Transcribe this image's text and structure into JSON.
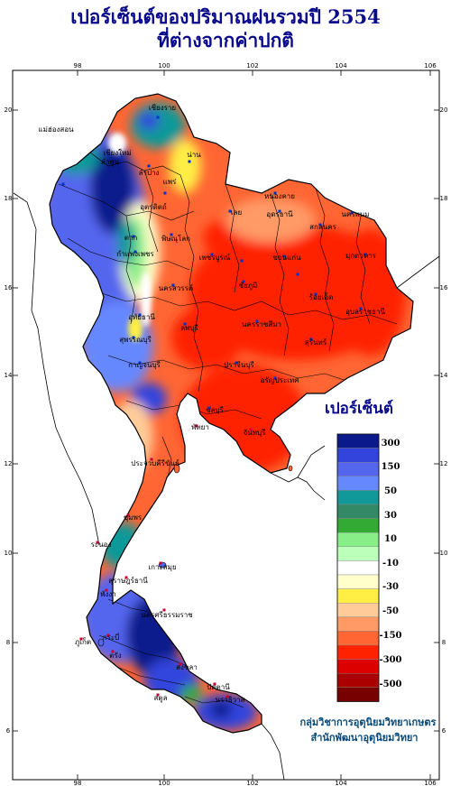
{
  "title": {
    "line1": "เปอร์เซ็นต์ของปริมาณฝนรวมปี  2554",
    "line2": "ที่ต่างจากค่าปกติ"
  },
  "axes": {
    "lon_ticks": [
      "98",
      "100",
      "102",
      "104",
      "106"
    ],
    "lat_ticks": [
      "20",
      "18",
      "16",
      "14",
      "12",
      "10",
      "8",
      "6"
    ]
  },
  "legend": {
    "title": "เปอร์เซ็นต์",
    "colors": [
      "#0a1a8c",
      "#3344dd",
      "#5566ee",
      "#6688ff",
      "#119999",
      "#338866",
      "#33aa33",
      "#88ee88",
      "#bbffbb",
      "#ffffff",
      "#ffffcc",
      "#ffee44",
      "#ffcc99",
      "#ff9966",
      "#ff6633",
      "#ff2200",
      "#dd0000",
      "#aa0000",
      "#770000"
    ],
    "labels": [
      "300",
      "150",
      "50",
      "30",
      "10",
      "-10",
      "-30",
      "-50",
      "-150",
      "-300",
      "-500"
    ]
  },
  "provinces": [
    "เชียงราย",
    "แม่ฮ่องสอน",
    "เชียงใหม่",
    "ลำพูน",
    "ลำปาง",
    "น่าน",
    "แพร่",
    "อุตรดิตถ์",
    "หนองคาย",
    "นครพนม",
    "เลย",
    "อุดรธานี",
    "สกลนคร",
    "มุกดาหาร",
    "ตาก",
    "พิษณุโลก",
    "เพชรบูรณ์",
    "ขอนแก่น",
    "กำแพงเพชร",
    "นครสวรรค์",
    "ชัยภูมิ",
    "ร้อยเอ็ด",
    "อุบลราชธานี",
    "อุทัยธานี",
    "ลพบุรี",
    "นครราชสีมา",
    "สุรินทร์",
    "สุพรรณบุรี",
    "กาญจนบุรี",
    "ปราจีนบุรี",
    "อรัญประเทศ",
    "ชลบุรี",
    "พัทยา",
    "จันทบุรี",
    "ประจวบคีรีขันธ์",
    "ชุมพร",
    "ระนอง",
    "เกาะสมุย",
    "สุราษฎร์ธานี",
    "นครศรีธรรมราช",
    "พังงา",
    "ภูเก็ต",
    "กระบี่",
    "ตรัง",
    "สงขลา",
    "สตูล",
    "ปัตตานี",
    "นราธิวาส"
  ],
  "credit": {
    "line1": "กลุ่มวิชาการอุตุนิยมวิทยาเกษตร",
    "line2": "สำนักพัฒนาอุตุนิยมวิทยา"
  }
}
